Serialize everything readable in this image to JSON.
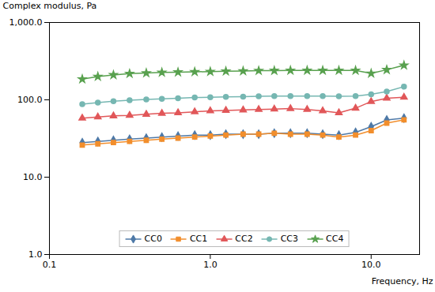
{
  "chart_data": {
    "type": "line",
    "xlabel": "Frequency, Hz",
    "ylabel": "Complex modulus, Pa",
    "log": true,
    "grid": false,
    "legend": "lower center",
    "xlim": [
      0.1,
      20
    ],
    "ylim": [
      1.0,
      1000.0
    ],
    "xticks": [
      0.1,
      {
        "value": 1.0,
        "label": "1.0"
      },
      {
        "value": 10.0,
        "label": "10.0"
      }
    ],
    "yticks": [
      {
        "value": 1.0,
        "label": "1.0"
      },
      {
        "value": 10.0,
        "label": "10.0"
      },
      {
        "value": 100.0,
        "label": "100.0"
      },
      {
        "value": 1000.0,
        "label": "1,000.0"
      }
    ],
    "x": [
      0.16,
      0.2,
      0.25,
      0.315,
      0.4,
      0.5,
      0.63,
      0.8,
      1.0,
      1.25,
      1.6,
      2.0,
      2.5,
      3.15,
      4.0,
      5.0,
      6.3,
      8.0,
      10.0,
      12.5,
      16.0
    ],
    "series": [
      {
        "name": "CC0",
        "marker": "diamond",
        "values": [
          28,
          29,
          30,
          31,
          32,
          33,
          34,
          35,
          35,
          36,
          36,
          36,
          37,
          37,
          37,
          36,
          35,
          38,
          45,
          55,
          58
        ]
      },
      {
        "name": "CC1",
        "marker": "square",
        "values": [
          26,
          27,
          28,
          29,
          30,
          31,
          32,
          33,
          34,
          35,
          36,
          36,
          37,
          36,
          36,
          35,
          33,
          35,
          40,
          50,
          55
        ]
      },
      {
        "name": "CC2",
        "marker": "triangle",
        "values": [
          58,
          60,
          62,
          63,
          65,
          67,
          68,
          70,
          72,
          73,
          74,
          75,
          76,
          77,
          75,
          72,
          68,
          78,
          95,
          105,
          108
        ]
      },
      {
        "name": "CC3",
        "marker": "circle",
        "values": [
          88,
          92,
          96,
          99,
          101,
          103,
          105,
          107,
          108,
          109,
          110,
          111,
          112,
          112,
          112,
          112,
          111,
          112,
          118,
          128,
          148
        ]
      },
      {
        "name": "CC4",
        "marker": "star",
        "values": [
          185,
          200,
          210,
          218,
          222,
          226,
          228,
          230,
          232,
          234,
          236,
          238,
          239,
          240,
          240,
          240,
          240,
          240,
          220,
          245,
          280
        ]
      }
    ]
  }
}
